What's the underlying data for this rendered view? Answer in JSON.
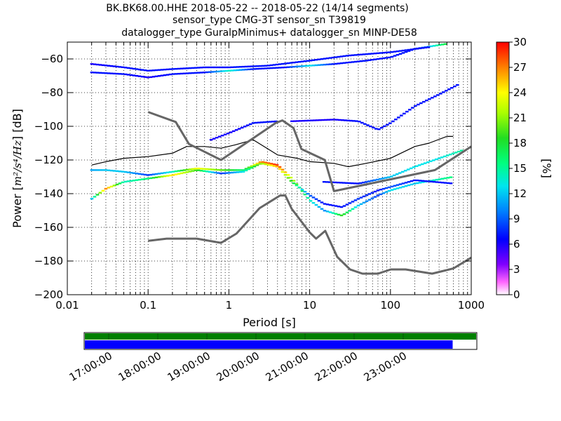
{
  "chart_data": {
    "type": "heatmap",
    "title_lines": [
      "BK.BK68.00.HHE   2018-05-22 -- 2018-05-22  (14/14 segments)",
      "sensor_type CMG-3T sensor_sn T39819",
      "datalogger_type GuralpMinimus+ datalogger_sn MINP-DE58"
    ],
    "xlabel": "Period [s]",
    "ylabel_prefix": "Power [",
    "ylabel_math": "m²/s⁴/Hz",
    "ylabel_suffix": "] [dB]",
    "x_scale": "log",
    "xlim": [
      0.01,
      1000
    ],
    "ylim": [
      -200,
      -50
    ],
    "x_ticks": [
      0.01,
      0.1,
      1,
      10,
      100,
      1000
    ],
    "x_tick_labels": [
      "0.01",
      "0.1",
      "1",
      "10",
      "100",
      "1000"
    ],
    "y_ticks": [
      -200,
      -180,
      -160,
      -140,
      -120,
      -100,
      -80,
      -60
    ],
    "y_tick_labels": [
      "−200",
      "−180",
      "−160",
      "−140",
      "−120",
      "−100",
      "−80",
      "−60"
    ],
    "colorbar": {
      "label": "[%]",
      "range": [
        0,
        30
      ],
      "ticks": [
        0,
        3,
        6,
        9,
        12,
        15,
        18,
        21,
        24,
        27,
        30
      ],
      "tick_labels": [
        "0",
        "3",
        "6",
        "9",
        "12",
        "15",
        "18",
        "21",
        "24",
        "27",
        "30"
      ]
    },
    "series": [
      {
        "kind": "psd-band",
        "points": [
          {
            "x": 0.02,
            "y": -126,
            "pct": 11
          },
          {
            "x": 0.03,
            "y": -126,
            "pct": 12
          },
          {
            "x": 0.05,
            "y": -127,
            "pct": 12
          },
          {
            "x": 0.1,
            "y": -129,
            "pct": 8
          },
          {
            "x": 0.2,
            "y": -127,
            "pct": 14
          },
          {
            "x": 0.4,
            "y": -125,
            "pct": 24
          },
          {
            "x": 0.8,
            "y": -126,
            "pct": 20
          },
          {
            "x": 1.5,
            "y": -126,
            "pct": 16
          },
          {
            "x": 2.5,
            "y": -121,
            "pct": 27
          },
          {
            "x": 4,
            "y": -123,
            "pct": 29
          },
          {
            "x": 6,
            "y": -131,
            "pct": 22
          },
          {
            "x": 10,
            "y": -144,
            "pct": 14
          },
          {
            "x": 15,
            "y": -150,
            "pct": 10
          },
          {
            "x": 25,
            "y": -153,
            "pct": 19
          },
          {
            "x": 40,
            "y": -147,
            "pct": 12
          },
          {
            "x": 70,
            "y": -141,
            "pct": 8
          },
          {
            "x": 100,
            "y": -138,
            "pct": 13
          },
          {
            "x": 200,
            "y": -134,
            "pct": 12
          },
          {
            "x": 600,
            "y": -130,
            "pct": 16
          }
        ]
      },
      {
        "kind": "psd-band",
        "points": [
          {
            "x": 0.02,
            "y": -143,
            "pct": 12
          },
          {
            "x": 0.03,
            "y": -137,
            "pct": 27
          },
          {
            "x": 0.05,
            "y": -133,
            "pct": 14
          },
          {
            "x": 0.1,
            "y": -131,
            "pct": 16
          },
          {
            "x": 0.2,
            "y": -129,
            "pct": 25
          },
          {
            "x": 0.4,
            "y": -126,
            "pct": 19
          },
          {
            "x": 0.8,
            "y": -128,
            "pct": 8
          },
          {
            "x": 1.5,
            "y": -127,
            "pct": 13
          },
          {
            "x": 2.5,
            "y": -122,
            "pct": 21
          },
          {
            "x": 4,
            "y": -124,
            "pct": 26
          },
          {
            "x": 6,
            "y": -133,
            "pct": 18
          },
          {
            "x": 10,
            "y": -141,
            "pct": 9
          },
          {
            "x": 15,
            "y": -146,
            "pct": 7
          },
          {
            "x": 25,
            "y": -148,
            "pct": 7
          },
          {
            "x": 40,
            "y": -143,
            "pct": 8
          },
          {
            "x": 70,
            "y": -138,
            "pct": 7
          },
          {
            "x": 100,
            "y": -136,
            "pct": 9
          },
          {
            "x": 200,
            "y": -132,
            "pct": 7
          },
          {
            "x": 600,
            "y": -134,
            "pct": 7
          }
        ]
      },
      {
        "kind": "psd-band",
        "points": [
          {
            "x": 0.02,
            "y": -68,
            "pct": 7
          },
          {
            "x": 0.05,
            "y": -69,
            "pct": 7
          },
          {
            "x": 0.1,
            "y": -71,
            "pct": 6
          },
          {
            "x": 0.2,
            "y": -69,
            "pct": 7
          },
          {
            "x": 0.5,
            "y": -68,
            "pct": 7
          },
          {
            "x": 1,
            "y": -67,
            "pct": 14
          },
          {
            "x": 2,
            "y": -66,
            "pct": 7
          },
          {
            "x": 5,
            "y": -65,
            "pct": 7
          },
          {
            "x": 10,
            "y": -64,
            "pct": 13
          },
          {
            "x": 20,
            "y": -63,
            "pct": 7
          },
          {
            "x": 50,
            "y": -61,
            "pct": 7
          },
          {
            "x": 100,
            "y": -59,
            "pct": 7
          },
          {
            "x": 200,
            "y": -54,
            "pct": 7
          },
          {
            "x": 500,
            "y": -51,
            "pct": 18
          }
        ]
      },
      {
        "kind": "psd-band",
        "points": [
          {
            "x": 0.02,
            "y": -63,
            "pct": 6
          },
          {
            "x": 0.05,
            "y": -65,
            "pct": 7
          },
          {
            "x": 0.1,
            "y": -67,
            "pct": 7
          },
          {
            "x": 0.2,
            "y": -66,
            "pct": 7
          },
          {
            "x": 0.5,
            "y": -65,
            "pct": 7
          },
          {
            "x": 1,
            "y": -65,
            "pct": 7
          },
          {
            "x": 3,
            "y": -64,
            "pct": 7
          },
          {
            "x": 10,
            "y": -61,
            "pct": 7
          },
          {
            "x": 30,
            "y": -58,
            "pct": 7
          },
          {
            "x": 100,
            "y": -56,
            "pct": 7
          },
          {
            "x": 300,
            "y": -53,
            "pct": 7
          }
        ]
      },
      {
        "kind": "psd-band",
        "points": [
          {
            "x": 6,
            "y": -97,
            "pct": 6
          },
          {
            "x": 20,
            "y": -96,
            "pct": 6
          },
          {
            "x": 40,
            "y": -97,
            "pct": 7
          },
          {
            "x": 70,
            "y": -102,
            "pct": 7
          },
          {
            "x": 100,
            "y": -98,
            "pct": 7
          },
          {
            "x": 200,
            "y": -88,
            "pct": 7
          },
          {
            "x": 400,
            "y": -81,
            "pct": 7
          },
          {
            "x": 700,
            "y": -75,
            "pct": 7
          }
        ]
      },
      {
        "kind": "psd-band",
        "points": [
          {
            "x": 0.6,
            "y": -108,
            "pct": 6
          },
          {
            "x": 1,
            "y": -104,
            "pct": 6
          },
          {
            "x": 2,
            "y": -98,
            "pct": 7
          },
          {
            "x": 4,
            "y": -97,
            "pct": 7
          }
        ]
      },
      {
        "kind": "psd-band",
        "points": [
          {
            "x": 15,
            "y": -133,
            "pct": 7
          },
          {
            "x": 40,
            "y": -134,
            "pct": 7
          },
          {
            "x": 100,
            "y": -130,
            "pct": 12
          },
          {
            "x": 200,
            "y": -124,
            "pct": 13
          },
          {
            "x": 400,
            "y": -119,
            "pct": 13
          },
          {
            "x": 800,
            "y": -114,
            "pct": 15
          }
        ]
      }
    ],
    "lines": [
      {
        "kind": "mean",
        "color": "#000000",
        "points": [
          {
            "x": 0.02,
            "y": -123
          },
          {
            "x": 0.03,
            "y": -121
          },
          {
            "x": 0.05,
            "y": -119
          },
          {
            "x": 0.1,
            "y": -118
          },
          {
            "x": 0.2,
            "y": -116
          },
          {
            "x": 0.3,
            "y": -112
          },
          {
            "x": 0.5,
            "y": -112
          },
          {
            "x": 0.8,
            "y": -113
          },
          {
            "x": 1.2,
            "y": -111
          },
          {
            "x": 2,
            "y": -108
          },
          {
            "x": 4,
            "y": -117
          },
          {
            "x": 7,
            "y": -119
          },
          {
            "x": 10,
            "y": -121
          },
          {
            "x": 20,
            "y": -122
          },
          {
            "x": 30,
            "y": -124
          },
          {
            "x": 50,
            "y": -122
          },
          {
            "x": 100,
            "y": -119
          },
          {
            "x": 200,
            "y": -112
          },
          {
            "x": 300,
            "y": -110
          },
          {
            "x": 500,
            "y": -106
          },
          {
            "x": 600,
            "y": -106
          }
        ]
      },
      {
        "kind": "noise-model-high",
        "color": "#666666",
        "points": [
          {
            "x": 0.1,
            "y": -91.5
          },
          {
            "x": 0.22,
            "y": -97.4
          },
          {
            "x": 0.32,
            "y": -110.5
          },
          {
            "x": 0.8,
            "y": -120
          },
          {
            "x": 3.8,
            "y": -98
          },
          {
            "x": 4.6,
            "y": -96.5
          },
          {
            "x": 6.3,
            "y": -101
          },
          {
            "x": 7.9,
            "y": -113.5
          },
          {
            "x": 15.4,
            "y": -120
          },
          {
            "x": 20,
            "y": -138.5
          },
          {
            "x": 354.8,
            "y": -126
          },
          {
            "x": 1000,
            "y": -112
          }
        ]
      },
      {
        "kind": "noise-model-low",
        "color": "#666666",
        "points": [
          {
            "x": 0.1,
            "y": -168
          },
          {
            "x": 0.17,
            "y": -166.7
          },
          {
            "x": 0.4,
            "y": -166.7
          },
          {
            "x": 0.8,
            "y": -169.2
          },
          {
            "x": 1.24,
            "y": -163.7
          },
          {
            "x": 2.4,
            "y": -148.6
          },
          {
            "x": 4.3,
            "y": -141.1
          },
          {
            "x": 5,
            "y": -141.1
          },
          {
            "x": 6,
            "y": -149
          },
          {
            "x": 10,
            "y": -163
          },
          {
            "x": 12,
            "y": -166.7
          },
          {
            "x": 15.6,
            "y": -162.1
          },
          {
            "x": 21.9,
            "y": -177.5
          },
          {
            "x": 31.6,
            "y": -185
          },
          {
            "x": 45,
            "y": -187.5
          },
          {
            "x": 70,
            "y": -187.5
          },
          {
            "x": 101,
            "y": -185
          },
          {
            "x": 154,
            "y": -185
          },
          {
            "x": 328,
            "y": -187.5
          },
          {
            "x": 600,
            "y": -184.4
          },
          {
            "x": 1000,
            "y": -178
          }
        ]
      }
    ],
    "coverage": {
      "time_tick_labels": [
        "17:00:00",
        "18:00:00",
        "19:00:00",
        "20:00:00",
        "21:00:00",
        "22:00:00",
        "23:00:00"
      ],
      "colors": {
        "data": "#0000ff",
        "used": "#008000"
      },
      "data_fraction": 0.94
    }
  }
}
